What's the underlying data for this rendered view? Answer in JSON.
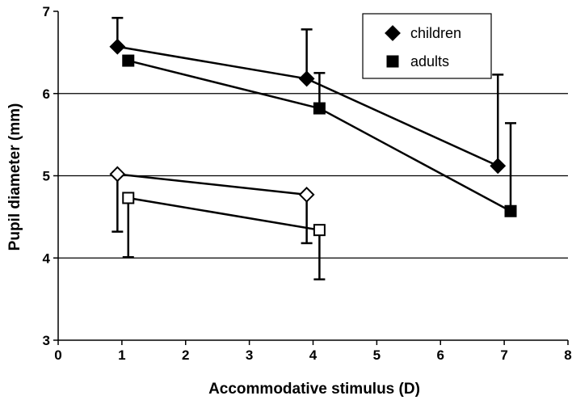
{
  "chart_data": {
    "type": "scatter",
    "title": "",
    "xlabel": "Accommodative stimulus (D)",
    "ylabel": "Pupil diameter (mm)",
    "xlim": [
      0,
      8
    ],
    "ylim": [
      3,
      7
    ],
    "xticks": [
      "0",
      "1",
      "2",
      "3",
      "4",
      "5",
      "6",
      "7",
      "8"
    ],
    "yticks": [
      "3",
      "4",
      "5",
      "6",
      "7"
    ],
    "grid": "horizontal",
    "legend_position": "top-right",
    "legend": [
      "children",
      "adults"
    ],
    "series": [
      {
        "name": "children",
        "marker": "diamond",
        "fill": "filled",
        "points": [
          {
            "x": 0.93,
            "y": 6.57,
            "err_plus": 0.35,
            "err_minus": 0
          },
          {
            "x": 3.9,
            "y": 6.18,
            "err_plus": 0.6,
            "err_minus": 0
          },
          {
            "x": 6.9,
            "y": 5.12,
            "err_plus": 1.11,
            "err_minus": 0
          }
        ]
      },
      {
        "name": "adults",
        "marker": "square",
        "fill": "filled",
        "points": [
          {
            "x": 1.1,
            "y": 6.4,
            "err_plus": 0,
            "err_minus": 0
          },
          {
            "x": 4.1,
            "y": 5.82,
            "err_plus": 0.43,
            "err_minus": 0
          },
          {
            "x": 7.1,
            "y": 4.57,
            "err_plus": 1.07,
            "err_minus": 0
          }
        ]
      },
      {
        "marker": "diamond",
        "fill": "open",
        "points": [
          {
            "x": 0.93,
            "y": 5.02,
            "err_plus": 0,
            "err_minus": 0.7
          },
          {
            "x": 3.9,
            "y": 4.77,
            "err_plus": 0,
            "err_minus": 0.59
          }
        ]
      },
      {
        "marker": "square",
        "fill": "open",
        "points": [
          {
            "x": 1.1,
            "y": 4.73,
            "err_plus": 0,
            "err_minus": 0.72
          },
          {
            "x": 4.1,
            "y": 4.34,
            "err_plus": 0,
            "err_minus": 0.6
          }
        ]
      }
    ]
  }
}
